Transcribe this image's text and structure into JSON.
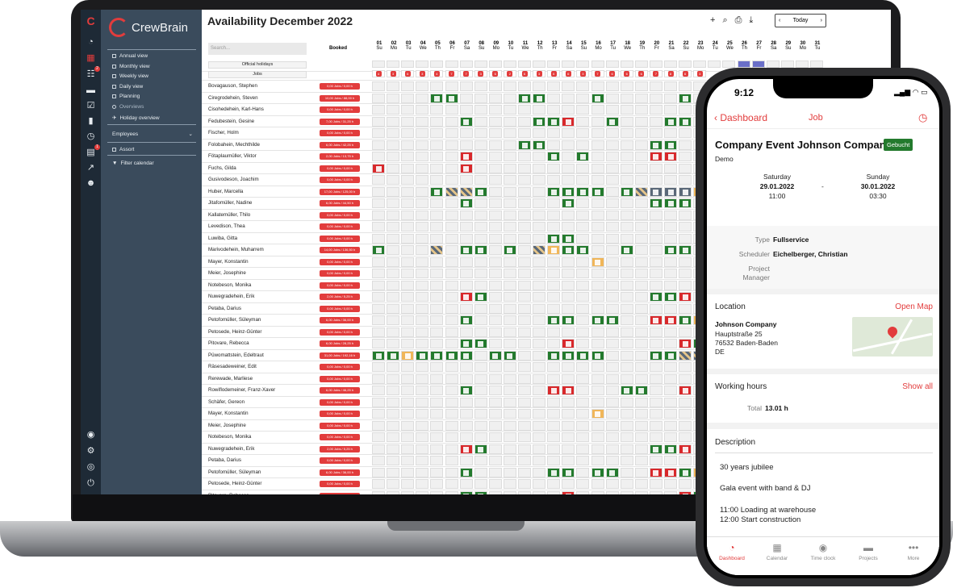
{
  "app": {
    "brand": "CrewBrain",
    "title": "Availability December 2022",
    "today_label": "Today",
    "search_placeholder": "Search...",
    "booked_header": "Booked",
    "official_holidays_label": "Official holidays",
    "jobs_label": "Jobs"
  },
  "nav": {
    "items": [
      "Annual view",
      "Monthly view",
      "Weekly view",
      "Daily view",
      "Planning",
      "Overviews",
      "Holiday overview"
    ],
    "employees_label": "Employees",
    "assort_label": "Assort",
    "filter_label": "Filter calendar"
  },
  "iconbar": {
    "badge1": "2",
    "badge2": "1"
  },
  "days": [
    {
      "n": "01",
      "d": "Su"
    },
    {
      "n": "02",
      "d": "Mo"
    },
    {
      "n": "03",
      "d": "Tu"
    },
    {
      "n": "04",
      "d": "We"
    },
    {
      "n": "05",
      "d": "Th"
    },
    {
      "n": "06",
      "d": "Fr"
    },
    {
      "n": "07",
      "d": "Sa"
    },
    {
      "n": "08",
      "d": "Su"
    },
    {
      "n": "09",
      "d": "Mo"
    },
    {
      "n": "10",
      "d": "Tu"
    },
    {
      "n": "11",
      "d": "We"
    },
    {
      "n": "12",
      "d": "Th"
    },
    {
      "n": "13",
      "d": "Fr"
    },
    {
      "n": "14",
      "d": "Sa"
    },
    {
      "n": "15",
      "d": "Su"
    },
    {
      "n": "16",
      "d": "Mo"
    },
    {
      "n": "17",
      "d": "Tu"
    },
    {
      "n": "18",
      "d": "We"
    },
    {
      "n": "19",
      "d": "Th"
    },
    {
      "n": "20",
      "d": "Fr"
    },
    {
      "n": "21",
      "d": "Sa"
    },
    {
      "n": "22",
      "d": "Su"
    },
    {
      "n": "23",
      "d": "Mo"
    },
    {
      "n": "24",
      "d": "Tu"
    },
    {
      "n": "25",
      "d": "We"
    },
    {
      "n": "26",
      "d": "Th"
    },
    {
      "n": "27",
      "d": "Fr"
    },
    {
      "n": "28",
      "d": "Sa"
    },
    {
      "n": "29",
      "d": "Su"
    },
    {
      "n": "30",
      "d": "Mo"
    },
    {
      "n": "31",
      "d": "Tu"
    }
  ],
  "job_counts": [
    "4",
    "3",
    "6",
    "3",
    "4",
    "7",
    "7",
    "3",
    "6",
    "2",
    "6",
    "3",
    "6",
    "6",
    "3",
    "7",
    "6",
    "6",
    "6",
    "7",
    "8",
    "6",
    "3"
  ],
  "employees": [
    {
      "name": "Bovagauson, Stephen",
      "booked": "0,00 Jobs / 0,00 h",
      "cells": ""
    },
    {
      "name": "Ciregrodehein, Steven",
      "booked": "10,00 Jobs / 88,00 h",
      "cells": "....gg....gg...g.....g"
    },
    {
      "name": "Cisohedehein, Karl-Hans",
      "booked": "0,00 Jobs / 0,00 h",
      "cells": ""
    },
    {
      "name": "Fedubestein, Gesine",
      "booked": "7,00 Jobs / 31,25 h",
      "cells": "......g....ggr..g...gg"
    },
    {
      "name": "Fischer, Holm",
      "booked": "0,00 Jobs / 0,00 h",
      "cells": ""
    },
    {
      "name": "Folobahein, Mechthilde",
      "booked": "6,00 Jobs / 42,25 h",
      "cells": "..........gg.......gg"
    },
    {
      "name": "Fötaplaumüller, Viktor",
      "booked": "2,00 Jobs / 13,75 h",
      "cells": "......r.....g.g....rr"
    },
    {
      "name": "Fuchs, Gilda",
      "booked": "0,00 Jobs / 0,00 h",
      "cells": "r.....r"
    },
    {
      "name": "Gusivodeson, Joachim",
      "booked": "0,00 Jobs / 0,00 h",
      "cells": ""
    },
    {
      "name": "Huber, Marcella",
      "booked": "17,00 Jobs / 125,00 h",
      "cells": "....ghhg....gggg.ghssso"
    },
    {
      "name": "Jitafomüller, Nadine",
      "booked": "6,00 Jobs / 44,50 h",
      "cells": "......g......g.....ggg"
    },
    {
      "name": "Kallatemüller, Thilo",
      "booked": "0,00 Jobs / 0,00 h",
      "cells": ""
    },
    {
      "name": "Levedison, Thea",
      "booked": "0,00 Jobs / 0,00 h",
      "cells": ""
    },
    {
      "name": "Luwiba, Gitta",
      "booked": "0,00 Jobs / 0,00 h",
      "cells": "............gg"
    },
    {
      "name": "Marivodehein, Muharrem",
      "booked": "14,00 Jobs / 136,50 h",
      "cells": "g...h.gg.g.hogg..g..gg"
    },
    {
      "name": "Mayer, Konstantin",
      "booked": "0,00 Jobs / 0,00 h",
      "cells": "...............o"
    },
    {
      "name": "Meier, Josephine",
      "booked": "0,00 Jobs / 0,00 h",
      "cells": ""
    },
    {
      "name": "Notebeson, Monika",
      "booked": "0,00 Jobs / 0,00 h",
      "cells": ""
    },
    {
      "name": "Nuwegradehein, Erik",
      "booked": "2,00 Jobs / 5,25 h",
      "cells": "......rg...........ggr"
    },
    {
      "name": "Petaba, Darius",
      "booked": "0,00 Jobs / 0,00 h",
      "cells": ""
    },
    {
      "name": "Petofomüller, Süleyman",
      "booked": "6,00 Jobs / 36,00 h",
      "cells": "......g.....gg.gg..rrgo"
    },
    {
      "name": "Petosede, Heinz-Günter",
      "booked": "0,00 Jobs / 0,00 h",
      "cells": ""
    },
    {
      "name": "Pitovare, Rebecca",
      "booked": "6,00 Jobs / 28,25 h",
      "cells": "......gg.....r.......rg"
    },
    {
      "name": "Püwomattstein, Edeltraut",
      "booked": "31,00 Jobs / 192,16 h",
      "cells": "ggogggg.gg..gggg...gghhh"
    },
    {
      "name": "Räsesadeweiner, Edit",
      "booked": "0,00 Jobs / 0,00 h",
      "cells": ""
    },
    {
      "name": "Rerewade, Marliese",
      "booked": "0,00 Jobs / 0,00 h",
      "cells": ""
    },
    {
      "name": "Rowiflodemeiner, Franz-Xaver",
      "booked": "6,00 Jobs / 46,25 h",
      "cells": "......g.....rr...gg..r"
    },
    {
      "name": "Schäfer, Gereon",
      "booked": "0,00 Jobs / 0,00 h",
      "cells": ""
    },
    {
      "name": "Mayer, Konstantin",
      "booked": "0,00 Jobs / 0,00 h",
      "cells": "...............o"
    },
    {
      "name": "Meier, Josephine",
      "booked": "0,00 Jobs / 0,00 h",
      "cells": ""
    },
    {
      "name": "Notebeson, Monika",
      "booked": "0,00 Jobs / 0,00 h",
      "cells": ""
    },
    {
      "name": "Nuwegradehein, Erik",
      "booked": "2,00 Jobs / 5,25 h",
      "cells": "......rg...........ggr"
    },
    {
      "name": "Petaba, Darius",
      "booked": "0,00 Jobs / 0,00 h",
      "cells": ""
    },
    {
      "name": "Petofomüller, Süleyman",
      "booked": "6,00 Jobs / 36,00 h",
      "cells": "......g.....gg.gg..rrgo"
    },
    {
      "name": "Petosede, Heinz-Günter",
      "booked": "0,00 Jobs / 0,00 h",
      "cells": ""
    },
    {
      "name": "Pitovare, Rebecca",
      "booked": "6,00 Jobs / 28,25 h",
      "cells": "......gg.....r.......rg"
    }
  ],
  "phone": {
    "time": "9:12",
    "status": "▂▄▆ ◠ ▭",
    "back_label": "Dashboard",
    "title": "Job",
    "event_title": "Company Event Johnson Compan",
    "status_badge": "Gebucht",
    "subtitle": "Demo",
    "start_day": "Saturday",
    "start_date": "29.01.2022",
    "start_time": "11:00",
    "dash": "-",
    "end_day": "Sunday",
    "end_date": "30.01.2022",
    "end_time": "03:30",
    "type_label": "Type",
    "type_value": "Fullservice",
    "scheduler_label": "Scheduler",
    "scheduler_value": "Eichelberger, Christian",
    "pm_label1": "Project",
    "pm_label2": "Manager",
    "location_label": "Location",
    "open_map": "Open Map",
    "company": "Johnson Company",
    "street": "Hauptstraße 25",
    "city": "76532 Baden-Baden",
    "country": "DE",
    "working_hours_label": "Working hours",
    "show_all": "Show all",
    "total_label": "Total",
    "total_value": "13.01 h",
    "description_label": "Description",
    "desc1": "30 years jubilee",
    "desc2": "Gala event with band & DJ",
    "desc3": "11:00 Loading at warehouse",
    "desc4": "12:00 Start construction",
    "tabs": [
      "Dashboard",
      "Calendar",
      "Time clock",
      "Projects",
      "More"
    ]
  }
}
